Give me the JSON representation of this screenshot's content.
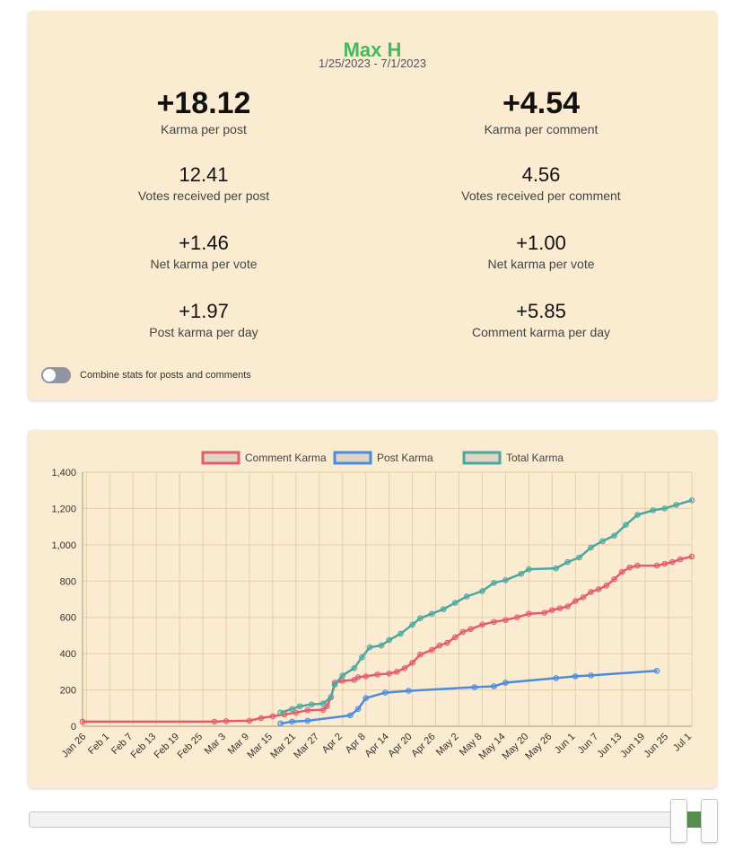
{
  "profile": {
    "name": "Max H",
    "date_range": "1/25/2023 - 7/1/2023"
  },
  "stats": {
    "karma_per_post": {
      "value": "+18.12",
      "label": "Karma per post"
    },
    "karma_per_comment": {
      "value": "+4.54",
      "label": "Karma per comment"
    },
    "votes_per_post": {
      "value": "12.41",
      "label": "Votes received per post"
    },
    "votes_per_comment": {
      "value": "4.56",
      "label": "Votes received per comment"
    },
    "net_per_vote_post": {
      "value": "+1.46",
      "label": "Net karma per vote"
    },
    "net_per_vote_comment": {
      "value": "+1.00",
      "label": "Net karma per vote"
    },
    "post_per_day": {
      "value": "+1.97",
      "label": "Post karma per day"
    },
    "comment_per_day": {
      "value": "+5.85",
      "label": "Comment karma per day"
    }
  },
  "toggle": {
    "label": "Combine stats for posts and comments",
    "checked": false
  },
  "colors": {
    "comment": "#e45c6e",
    "post": "#4a8be0",
    "total": "#4aa8a0",
    "name": "#43b95c",
    "card": "#fbebd0"
  },
  "chart_data": {
    "type": "line",
    "title": "",
    "xlabel": "",
    "ylabel": "",
    "x_axis": {
      "type": "date",
      "min": "2023-01-25",
      "max": "2023-07-01"
    },
    "ylim": [
      0,
      1400
    ],
    "yticks": [
      0,
      200,
      400,
      600,
      800,
      1000,
      1200,
      1400
    ],
    "xticks": [
      "Jan 26",
      "Feb 1",
      "Feb 7",
      "Feb 13",
      "Feb 19",
      "Feb 25",
      "Mar 3",
      "Mar 9",
      "Mar 15",
      "Mar 21",
      "Mar 27",
      "Apr 2",
      "Apr 8",
      "Apr 14",
      "Apr 20",
      "Apr 26",
      "May 2",
      "May 8",
      "May 14",
      "May 20",
      "May 26",
      "Jun 1",
      "Jun 7",
      "Jun 13",
      "Jun 19",
      "Jun 25",
      "Jul 1"
    ],
    "grid": true,
    "legend": "top",
    "series": [
      {
        "name": "Comment Karma",
        "points": [
          [
            "2023-01-25",
            25
          ],
          [
            "2023-02-28",
            25
          ],
          [
            "2023-03-03",
            28
          ],
          [
            "2023-03-09",
            30
          ],
          [
            "2023-03-12",
            45
          ],
          [
            "2023-03-15",
            55
          ],
          [
            "2023-03-18",
            65
          ],
          [
            "2023-03-21",
            75
          ],
          [
            "2023-03-24",
            88
          ],
          [
            "2023-03-28",
            90
          ],
          [
            "2023-03-29",
            110
          ],
          [
            "2023-03-30",
            160
          ],
          [
            "2023-03-31",
            240
          ],
          [
            "2023-04-02",
            250
          ],
          [
            "2023-04-05",
            255
          ],
          [
            "2023-04-06",
            270
          ],
          [
            "2023-04-08",
            275
          ],
          [
            "2023-04-11",
            285
          ],
          [
            "2023-04-14",
            290
          ],
          [
            "2023-04-16",
            300
          ],
          [
            "2023-04-18",
            320
          ],
          [
            "2023-04-20",
            350
          ],
          [
            "2023-04-22",
            395
          ],
          [
            "2023-04-25",
            420
          ],
          [
            "2023-04-27",
            445
          ],
          [
            "2023-04-29",
            460
          ],
          [
            "2023-05-01",
            490
          ],
          [
            "2023-05-03",
            520
          ],
          [
            "2023-05-05",
            535
          ],
          [
            "2023-05-08",
            560
          ],
          [
            "2023-05-11",
            575
          ],
          [
            "2023-05-14",
            585
          ],
          [
            "2023-05-17",
            600
          ],
          [
            "2023-05-20",
            620
          ],
          [
            "2023-05-24",
            625
          ],
          [
            "2023-05-26",
            640
          ],
          [
            "2023-05-28",
            650
          ],
          [
            "2023-05-30",
            660
          ],
          [
            "2023-06-01",
            690
          ],
          [
            "2023-06-03",
            710
          ],
          [
            "2023-06-05",
            740
          ],
          [
            "2023-06-07",
            755
          ],
          [
            "2023-06-09",
            775
          ],
          [
            "2023-06-11",
            810
          ],
          [
            "2023-06-13",
            850
          ],
          [
            "2023-06-15",
            875
          ],
          [
            "2023-06-17",
            885
          ],
          [
            "2023-06-22",
            885
          ],
          [
            "2023-06-24",
            895
          ],
          [
            "2023-06-26",
            905
          ],
          [
            "2023-06-28",
            920
          ],
          [
            "2023-07-01",
            935
          ]
        ]
      },
      {
        "name": "Post Karma",
        "points": [
          [
            "2023-03-17",
            15
          ],
          [
            "2023-03-20",
            25
          ],
          [
            "2023-03-24",
            30
          ],
          [
            "2023-04-04",
            60
          ],
          [
            "2023-04-06",
            95
          ],
          [
            "2023-04-08",
            155
          ],
          [
            "2023-04-13",
            185
          ],
          [
            "2023-04-19",
            195
          ],
          [
            "2023-05-06",
            215
          ],
          [
            "2023-05-11",
            220
          ],
          [
            "2023-05-14",
            240
          ],
          [
            "2023-05-27",
            265
          ],
          [
            "2023-06-01",
            275
          ],
          [
            "2023-06-05",
            280
          ],
          [
            "2023-06-22",
            305
          ]
        ]
      },
      {
        "name": "Total Karma",
        "points": [
          [
            "2023-03-17",
            75
          ],
          [
            "2023-03-20",
            95
          ],
          [
            "2023-03-22",
            110
          ],
          [
            "2023-03-25",
            120
          ],
          [
            "2023-03-28",
            125
          ],
          [
            "2023-03-30",
            160
          ],
          [
            "2023-03-31",
            230
          ],
          [
            "2023-04-02",
            280
          ],
          [
            "2023-04-05",
            320
          ],
          [
            "2023-04-07",
            380
          ],
          [
            "2023-04-09",
            435
          ],
          [
            "2023-04-12",
            445
          ],
          [
            "2023-04-14",
            475
          ],
          [
            "2023-04-17",
            510
          ],
          [
            "2023-04-20",
            560
          ],
          [
            "2023-04-22",
            595
          ],
          [
            "2023-04-25",
            620
          ],
          [
            "2023-04-28",
            645
          ],
          [
            "2023-05-01",
            680
          ],
          [
            "2023-05-04",
            715
          ],
          [
            "2023-05-08",
            745
          ],
          [
            "2023-05-11",
            790
          ],
          [
            "2023-05-14",
            805
          ],
          [
            "2023-05-18",
            840
          ],
          [
            "2023-05-20",
            865
          ],
          [
            "2023-05-27",
            870
          ],
          [
            "2023-05-30",
            905
          ],
          [
            "2023-06-02",
            930
          ],
          [
            "2023-06-05",
            985
          ],
          [
            "2023-06-08",
            1020
          ],
          [
            "2023-06-11",
            1050
          ],
          [
            "2023-06-14",
            1110
          ],
          [
            "2023-06-17",
            1165
          ],
          [
            "2023-06-21",
            1190
          ],
          [
            "2023-06-24",
            1200
          ],
          [
            "2023-06-27",
            1220
          ],
          [
            "2023-07-01",
            1245
          ]
        ]
      }
    ]
  },
  "range_slider": {
    "low": 0.975,
    "high": 1.0
  }
}
